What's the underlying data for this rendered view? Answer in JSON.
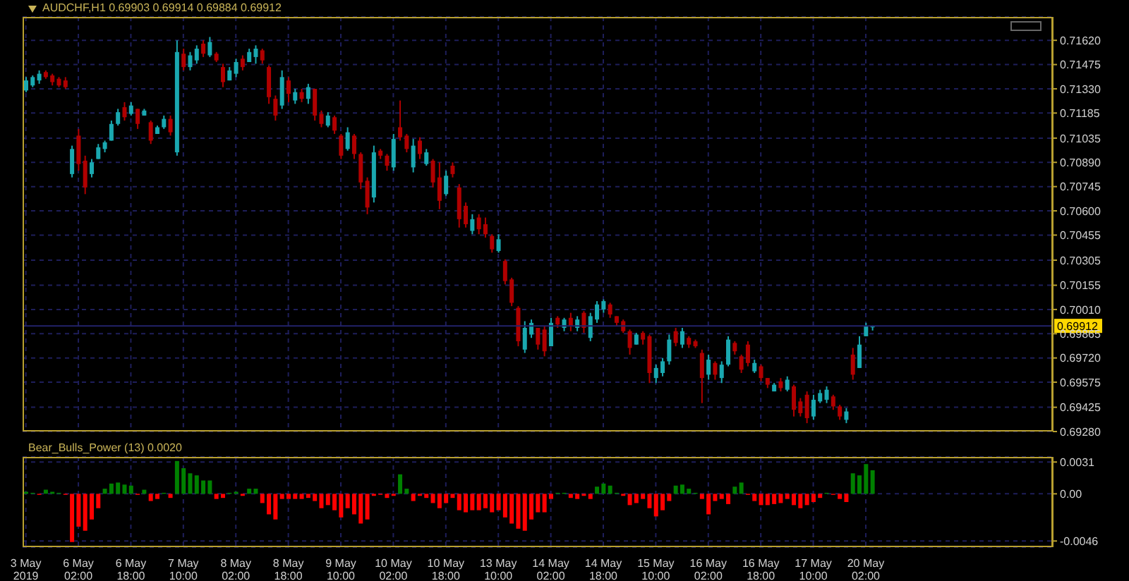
{
  "chart_data": [
    {
      "type": "candlestick",
      "title": "AUDCHF,H1 0.69903 0.69914 0.69884 0.69912",
      "categories": [
        null,
        null,
        null,
        null,
        null,
        null,
        null,
        null,
        null,
        null,
        null,
        null,
        null,
        null,
        null,
        null,
        null,
        null,
        null,
        null,
        null,
        null,
        null,
        null,
        null,
        null,
        null,
        null,
        null,
        null,
        null,
        null,
        null,
        null,
        null,
        null,
        null,
        null,
        null,
        null,
        null,
        null,
        null,
        null,
        null,
        null,
        null,
        null,
        null,
        null,
        null,
        null,
        null,
        null,
        null,
        null,
        null,
        null,
        null,
        null,
        null,
        null,
        null,
        null,
        null,
        null,
        null,
        null,
        null,
        null,
        null,
        null,
        null,
        null,
        null,
        null,
        null,
        null,
        null,
        null,
        null,
        null,
        null,
        null,
        null,
        null,
        null,
        null,
        null,
        null,
        null,
        null,
        null,
        null,
        null,
        null,
        null,
        null,
        null,
        null,
        null,
        null,
        null,
        null,
        null,
        null,
        null,
        null,
        null,
        null,
        null,
        null,
        null,
        null,
        null,
        null,
        null,
        null,
        null,
        null,
        null,
        null,
        null,
        null,
        null,
        null,
        null,
        null,
        null,
        null,
        null,
        null,
        null,
        null,
        null,
        null,
        null,
        null,
        null,
        null,
        null,
        null,
        null,
        null,
        null,
        null,
        null,
        null,
        null,
        null,
        null,
        null,
        null,
        null,
        null,
        null,
        null
      ],
      "ohlc": [
        [
          0.7132,
          0.714,
          0.7131,
          0.7138
        ],
        [
          0.7135,
          0.7141,
          0.7134,
          0.714
        ],
        [
          0.7138,
          0.7144,
          0.7136,
          0.7142
        ],
        [
          0.7143,
          0.7144,
          0.7139,
          0.714
        ],
        [
          0.7141,
          0.7142,
          0.7135,
          0.7137
        ],
        [
          0.7139,
          0.714,
          0.7134,
          0.7135
        ],
        [
          0.7138,
          0.714,
          0.7133,
          0.7134
        ],
        [
          0.7082,
          0.7099,
          0.708,
          0.7097
        ],
        [
          0.7105,
          0.7109,
          0.7084,
          0.7088
        ],
        [
          0.709,
          0.7093,
          0.707,
          0.7074
        ],
        [
          0.7082,
          0.7091,
          0.708,
          0.7089
        ],
        [
          0.7091,
          0.71,
          0.7091,
          0.7098
        ],
        [
          0.7097,
          0.7102,
          0.7095,
          0.7101
        ],
        [
          0.7102,
          0.7114,
          0.7102,
          0.7112
        ],
        [
          0.7112,
          0.7121,
          0.7111,
          0.7119
        ],
        [
          0.7122,
          0.7125,
          0.7114,
          0.7116
        ],
        [
          0.7118,
          0.7125,
          0.7117,
          0.7123
        ],
        [
          0.7121,
          0.7121,
          0.7109,
          0.7112
        ],
        [
          0.7117,
          0.7121,
          0.7117,
          0.712
        ],
        [
          0.7113,
          0.7114,
          0.71,
          0.7102
        ],
        [
          0.7106,
          0.7111,
          0.7106,
          0.711
        ],
        [
          0.711,
          0.7117,
          0.7109,
          0.7115
        ],
        [
          0.7115,
          0.7117,
          0.7105,
          0.7107
        ],
        [
          0.7095,
          0.7162,
          0.7093,
          0.7155
        ],
        [
          0.7154,
          0.7157,
          0.7144,
          0.7146
        ],
        [
          0.7146,
          0.7155,
          0.7144,
          0.7153
        ],
        [
          0.715,
          0.7159,
          0.7148,
          0.7157
        ],
        [
          0.716,
          0.7162,
          0.7152,
          0.7154
        ],
        [
          0.7153,
          0.7164,
          0.7152,
          0.7161
        ],
        [
          0.7154,
          0.7155,
          0.7149,
          0.715
        ],
        [
          0.7146,
          0.7148,
          0.7134,
          0.7137
        ],
        [
          0.7138,
          0.7146,
          0.7138,
          0.7144
        ],
        [
          0.7142,
          0.7151,
          0.714,
          0.7149
        ],
        [
          0.7151,
          0.7153,
          0.7144,
          0.7146
        ],
        [
          0.7149,
          0.7157,
          0.7149,
          0.7155
        ],
        [
          0.7152,
          0.7159,
          0.7148,
          0.7157
        ],
        [
          0.7156,
          0.7157,
          0.7148,
          0.715
        ],
        [
          0.7146,
          0.7147,
          0.7124,
          0.7128
        ],
        [
          0.7127,
          0.7129,
          0.7114,
          0.7117
        ],
        [
          0.7123,
          0.7144,
          0.7121,
          0.714
        ],
        [
          0.7138,
          0.714,
          0.7125,
          0.713
        ],
        [
          0.7126,
          0.7133,
          0.7124,
          0.7131
        ],
        [
          0.7131,
          0.7133,
          0.7125,
          0.7127
        ],
        [
          0.7127,
          0.7136,
          0.7124,
          0.7134
        ],
        [
          0.7133,
          0.7133,
          0.7114,
          0.7117
        ],
        [
          0.7118,
          0.712,
          0.711,
          0.7112
        ],
        [
          0.7111,
          0.7119,
          0.711,
          0.7117
        ],
        [
          0.7116,
          0.7117,
          0.7106,
          0.7108
        ],
        [
          0.7105,
          0.7106,
          0.7091,
          0.7093
        ],
        [
          0.7097,
          0.711,
          0.7096,
          0.7107
        ],
        [
          0.7105,
          0.7106,
          0.7091,
          0.7094
        ],
        [
          0.7094,
          0.7095,
          0.7073,
          0.7077
        ],
        [
          0.7078,
          0.708,
          0.7058,
          0.7062
        ],
        [
          0.7068,
          0.7099,
          0.7065,
          0.7095
        ],
        [
          0.7096,
          0.7097,
          0.7091,
          0.7093
        ],
        [
          0.7093,
          0.7094,
          0.7084,
          0.7087
        ],
        [
          0.7086,
          0.7106,
          0.7084,
          0.7103
        ],
        [
          0.711,
          0.7126,
          0.7102,
          0.7104
        ],
        [
          0.7105,
          0.7106,
          0.7095,
          0.7097
        ],
        [
          0.7086,
          0.7103,
          0.7083,
          0.7099
        ],
        [
          0.7102,
          0.7104,
          0.7091,
          0.7094
        ],
        [
          0.7088,
          0.7097,
          0.7087,
          0.7095
        ],
        [
          0.709,
          0.7091,
          0.7074,
          0.7077
        ],
        [
          0.708,
          0.7089,
          0.7061,
          0.7066
        ],
        [
          0.707,
          0.7084,
          0.7069,
          0.7081
        ],
        [
          0.7087,
          0.7089,
          0.708,
          0.7082
        ],
        [
          0.7074,
          0.7076,
          0.705,
          0.7055
        ],
        [
          0.7063,
          0.7065,
          0.705,
          0.7052
        ],
        [
          0.7048,
          0.7058,
          0.7046,
          0.7055
        ],
        [
          0.7056,
          0.7058,
          0.7046,
          0.7049
        ],
        [
          0.7052,
          0.7056,
          0.7044,
          0.7046
        ],
        [
          0.7045,
          0.7046,
          0.7035,
          0.7037
        ],
        [
          0.7036,
          0.7046,
          0.7035,
          0.7043
        ],
        [
          0.703,
          0.7031,
          0.7016,
          0.7018
        ],
        [
          0.7019,
          0.702,
          0.7003,
          0.7005
        ],
        [
          0.7002,
          0.7003,
          0.6979,
          0.6982
        ],
        [
          0.6977,
          0.6994,
          0.6975,
          0.699
        ],
        [
          0.6986,
          0.6995,
          0.6984,
          0.6993
        ],
        [
          0.699,
          0.699,
          0.6977,
          0.698
        ],
        [
          0.6989,
          0.6991,
          0.6973,
          0.6976
        ],
        [
          0.6979,
          0.6996,
          0.6979,
          0.6993
        ],
        [
          0.6996,
          0.6997,
          0.699,
          0.6992
        ],
        [
          0.699,
          0.6996,
          0.6988,
          0.6995
        ],
        [
          0.6996,
          0.6999,
          0.6988,
          0.6991
        ],
        [
          0.699,
          0.6997,
          0.6988,
          0.6995
        ],
        [
          0.6999,
          0.7,
          0.6987,
          0.699
        ],
        [
          0.6984,
          0.6999,
          0.6982,
          0.6997
        ],
        [
          0.6995,
          0.7006,
          0.6993,
          0.7004
        ],
        [
          0.7001,
          0.7007,
          0.6999,
          0.7006
        ],
        [
          0.7004,
          0.7005,
          0.6996,
          0.6998
        ],
        [
          0.6997,
          0.6997,
          0.6991,
          0.6993
        ],
        [
          0.6994,
          0.6995,
          0.6987,
          0.6988
        ],
        [
          0.6988,
          0.6989,
          0.6974,
          0.6978
        ],
        [
          0.698,
          0.6987,
          0.698,
          0.6986
        ],
        [
          0.6987,
          0.6988,
          0.698,
          0.6983
        ],
        [
          0.6985,
          0.6986,
          0.6957,
          0.6963
        ],
        [
          0.696,
          0.6968,
          0.6957,
          0.6966
        ],
        [
          0.6963,
          0.6972,
          0.6961,
          0.697
        ],
        [
          0.697,
          0.6986,
          0.6968,
          0.6983
        ],
        [
          0.6988,
          0.699,
          0.6979,
          0.6981
        ],
        [
          0.698,
          0.699,
          0.6978,
          0.6988
        ],
        [
          0.6984,
          0.6985,
          0.6978,
          0.698
        ],
        [
          0.6982,
          0.6983,
          0.6978,
          0.6979
        ],
        [
          0.6975,
          0.6977,
          0.6945,
          0.696
        ],
        [
          0.6962,
          0.6974,
          0.6959,
          0.6971
        ],
        [
          0.6969,
          0.697,
          0.6959,
          0.6962
        ],
        [
          0.696,
          0.697,
          0.6957,
          0.6968
        ],
        [
          0.6968,
          0.6985,
          0.6967,
          0.6983
        ],
        [
          0.6981,
          0.6982,
          0.6974,
          0.6976
        ],
        [
          0.6973,
          0.6974,
          0.6963,
          0.6965
        ],
        [
          0.698,
          0.6982,
          0.6967,
          0.6969
        ],
        [
          0.6964,
          0.6971,
          0.6963,
          0.6969
        ],
        [
          0.6967,
          0.6968,
          0.6958,
          0.696
        ],
        [
          0.696,
          0.696,
          0.6954,
          0.6956
        ],
        [
          0.6952,
          0.6957,
          0.6952,
          0.6956
        ],
        [
          0.6958,
          0.696,
          0.6952,
          0.6954
        ],
        [
          0.6953,
          0.6961,
          0.6952,
          0.6959
        ],
        [
          0.6955,
          0.6956,
          0.6937,
          0.6941
        ],
        [
          0.6946,
          0.6948,
          0.6937,
          0.6939
        ],
        [
          0.695,
          0.6952,
          0.6933,
          0.6936
        ],
        [
          0.6937,
          0.695,
          0.6935,
          0.6947
        ],
        [
          0.6946,
          0.6953,
          0.6945,
          0.6951
        ],
        [
          0.6947,
          0.6955,
          0.6945,
          0.6953
        ],
        [
          0.6949,
          0.695,
          0.6941,
          0.6943
        ],
        [
          0.6943,
          0.6944,
          0.6935,
          0.6937
        ],
        [
          0.6935,
          0.6942,
          0.6933,
          0.694
        ],
        [
          0.6974,
          0.6978,
          0.6959,
          0.6962
        ],
        [
          0.6966,
          0.6985,
          0.6966,
          0.698
        ],
        [
          0.6985,
          0.6993,
          0.6985,
          0.6991
        ],
        [
          0.69903,
          0.69914,
          0.69884,
          0.69912
        ],
        null,
        null,
        null,
        null,
        null,
        null,
        null,
        null,
        null,
        null,
        null,
        null,
        null,
        null,
        null,
        null,
        null,
        null,
        null,
        null,
        null,
        null,
        null,
        null,
        null,
        null,
        null
      ],
      "colors": [
        "#1aa8b0",
        "#1aa8b0",
        "#1aa8b0",
        "#b00000",
        "#b00000",
        "#b00000",
        "#b00000",
        "#1aa8b0",
        "#b00000",
        "#b00000",
        "#1aa8b0",
        "#1aa8b0",
        "#1aa8b0",
        "#1aa8b0",
        "#1aa8b0",
        "#b00000",
        "#1aa8b0",
        "#b00000",
        "#1aa8b0",
        "#b00000",
        "#1aa8b0",
        "#1aa8b0",
        "#b00000",
        "#1aa8b0",
        "#b00000",
        "#1aa8b0",
        "#1aa8b0",
        "#b00000",
        "#1aa8b0",
        "#b00000",
        "#b00000",
        "#1aa8b0",
        "#1aa8b0",
        "#b00000",
        "#1aa8b0",
        "#1aa8b0",
        "#b00000",
        "#b00000",
        "#b00000",
        "#1aa8b0",
        "#b00000",
        "#1aa8b0",
        "#b00000",
        "#1aa8b0",
        "#b00000",
        "#b00000",
        "#1aa8b0",
        "#b00000",
        "#b00000",
        "#1aa8b0",
        "#b00000",
        "#b00000",
        "#b00000",
        "#1aa8b0",
        "#b00000",
        "#b00000",
        "#1aa8b0",
        "#b00000",
        "#b00000",
        "#1aa8b0",
        "#b00000",
        "#1aa8b0",
        "#b00000",
        "#b00000",
        "#1aa8b0",
        "#b00000",
        "#b00000",
        "#b00000",
        "#1aa8b0",
        "#b00000",
        "#b00000",
        "#b00000",
        "#1aa8b0",
        "#b00000",
        "#b00000",
        "#b00000",
        "#1aa8b0",
        "#1aa8b0",
        "#b00000",
        "#b00000",
        "#1aa8b0",
        "#b00000",
        "#1aa8b0",
        "#b00000",
        "#1aa8b0",
        "#b00000",
        "#1aa8b0",
        "#1aa8b0",
        "#1aa8b0",
        "#b00000",
        "#b00000",
        "#b00000",
        "#b00000",
        "#1aa8b0",
        "#b00000",
        "#b00000",
        "#1aa8b0",
        "#1aa8b0",
        "#1aa8b0",
        "#b00000",
        "#1aa8b0",
        "#b00000",
        "#b00000",
        "#b00000",
        "#1aa8b0",
        "#b00000",
        "#1aa8b0",
        "#1aa8b0",
        "#b00000",
        "#b00000",
        "#b00000",
        "#1aa8b0",
        "#b00000",
        "#b00000",
        "#1aa8b0",
        "#b00000",
        "#1aa8b0",
        "#b00000",
        "#b00000",
        "#b00000",
        "#1aa8b0",
        "#1aa8b0",
        "#1aa8b0",
        "#b00000",
        "#b00000",
        "#1aa8b0",
        "#b00000",
        "#1aa8b0",
        "#1aa8b0",
        "#1aa8b0",
        null,
        null,
        null,
        null,
        null,
        null,
        null,
        null,
        null,
        null,
        null,
        null,
        null,
        null,
        null,
        null,
        null,
        null,
        null,
        null,
        null,
        null,
        null,
        null,
        null,
        null,
        null
      ],
      "ylim": [
        0.6928,
        0.7176
      ],
      "yticks": [
        {
          "value": 0.6928,
          "label": "0.69280"
        },
        {
          "value": 0.69425,
          "label": "0.69425"
        },
        {
          "value": 0.69575,
          "label": "0.69575"
        },
        {
          "value": 0.6972,
          "label": "0.69720"
        },
        {
          "value": 0.69865,
          "label": "0.69865"
        },
        {
          "value": 0.7001,
          "label": "0.70010"
        },
        {
          "value": 0.70155,
          "label": "0.70155"
        },
        {
          "value": 0.70305,
          "label": "0.70305"
        },
        {
          "value": 0.70455,
          "label": "0.70455"
        },
        {
          "value": 0.706,
          "label": "0.70600"
        },
        {
          "value": 0.70745,
          "label": "0.70745"
        },
        {
          "value": 0.7089,
          "label": "0.70890"
        },
        {
          "value": 0.71035,
          "label": "0.71035"
        },
        {
          "value": 0.71185,
          "label": "0.71185"
        },
        {
          "value": 0.7133,
          "label": "0.71330"
        },
        {
          "value": 0.71475,
          "label": "0.71475"
        },
        {
          "value": 0.7162,
          "label": "0.71620"
        }
      ],
      "ref_lines": [
        {
          "axis": "y",
          "value": 0.69912,
          "label": "0.69912",
          "color": "#22226a"
        }
      ],
      "grid": true,
      "tick_labels": "y"
    },
    {
      "type": "bar",
      "title": "Bear_Bulls_Power (13) 0.0020",
      "categories": [
        "3 May 2019",
        null,
        null,
        null,
        null,
        null,
        null,
        null,
        "6 May 02:00",
        null,
        null,
        null,
        null,
        null,
        null,
        null,
        "6 May 18:00",
        null,
        null,
        null,
        null,
        null,
        null,
        null,
        "7 May 10:00",
        null,
        null,
        null,
        null,
        null,
        null,
        null,
        "8 May 02:00",
        null,
        null,
        null,
        null,
        null,
        null,
        null,
        "8 May 18:00",
        null,
        null,
        null,
        null,
        null,
        null,
        null,
        "9 May 10:00",
        null,
        null,
        null,
        null,
        null,
        null,
        null,
        "10 May 02:00",
        null,
        null,
        null,
        null,
        null,
        null,
        null,
        "10 May 18:00",
        null,
        null,
        null,
        null,
        null,
        null,
        null,
        "13 May 10:00",
        null,
        null,
        null,
        null,
        null,
        null,
        null,
        "14 May 02:00",
        null,
        null,
        null,
        null,
        null,
        null,
        null,
        "14 May 18:00",
        null,
        null,
        null,
        null,
        null,
        null,
        null,
        "15 May 10:00",
        null,
        null,
        null,
        null,
        null,
        null,
        null,
        "16 May 02:00",
        null,
        null,
        null,
        null,
        null,
        null,
        null,
        "16 May 18:00",
        null,
        null,
        null,
        null,
        null,
        null,
        null,
        "17 May 10:00",
        null,
        null,
        null,
        null,
        null,
        null,
        null,
        "20 May 02:00",
        null,
        null,
        null,
        null,
        null,
        null,
        null,
        null,
        null,
        null,
        null,
        null,
        null,
        null,
        null,
        null,
        null,
        null,
        null,
        null,
        null,
        null,
        null,
        null,
        null,
        null,
        null,
        null
      ],
      "values": [
        0.0002,
        0.0001,
        -0.0001,
        0.0004,
        0.0002,
        0.0001,
        -0.0001,
        -0.0047,
        -0.0032,
        -0.0036,
        -0.0025,
        -0.0014,
        0.0005,
        0.001,
        0.0011,
        0.0009,
        0.0008,
        -0.0001,
        0.0004,
        -0.0007,
        -0.0005,
        0.0001,
        -0.0004,
        0.0032,
        0.0025,
        0.002,
        0.0018,
        0.0013,
        0.0013,
        -0.0005,
        -0.0004,
        0.0001,
        0.0002,
        -0.0002,
        0.0005,
        0.0005,
        -0.0009,
        -0.002,
        -0.0025,
        -0.0005,
        -0.0005,
        -0.0005,
        -0.0005,
        -0.0004,
        -0.0007,
        -0.0014,
        -0.0011,
        -0.0016,
        -0.0023,
        -0.0014,
        -0.002,
        -0.0029,
        -0.0025,
        -0.0002,
        -0.0001,
        -0.0004,
        -0.0002,
        0.0019,
        0.0005,
        -0.0007,
        -0.0002,
        -0.0004,
        -0.0009,
        -0.0014,
        -0.0009,
        -0.0004,
        -0.0016,
        -0.0018,
        -0.0016,
        -0.0016,
        -0.0014,
        -0.0018,
        -0.0016,
        -0.0023,
        -0.0029,
        -0.0034,
        -0.0036,
        -0.0025,
        -0.0018,
        -0.0018,
        -0.0005,
        0.0001,
        0.0001,
        -0.0004,
        -0.0005,
        -0.0002,
        -0.0005,
        0.0007,
        0.001,
        0.0008,
        0.0001,
        -0.0002,
        -0.0011,
        -0.0009,
        -0.0005,
        -0.0014,
        -0.0022,
        -0.0016,
        -0.0007,
        0.0008,
        0.0009,
        0.0005,
        0.0001,
        -0.0005,
        -0.002,
        -0.0007,
        -0.0005,
        -0.001,
        0.0007,
        0.0011,
        -0.0001,
        -0.0007,
        -0.0011,
        -0.0011,
        -0.001,
        -0.0009,
        -0.0005,
        -0.0011,
        -0.0014,
        -0.0011,
        -0.0008,
        -0.0004,
        0.0001,
        -0.0001,
        -0.0005,
        -0.0008,
        0.002,
        0.0018,
        0.0029,
        0.0023,
        null,
        null,
        null,
        null,
        null,
        null,
        null,
        null,
        null,
        null,
        null,
        null,
        null,
        null,
        null,
        null,
        null,
        null,
        null,
        null,
        null,
        null,
        null,
        null,
        null,
        null,
        null
      ],
      "colors": [
        "#008000",
        "#008000",
        "#ff0000",
        "#008000",
        "#008000",
        "#008000",
        "#ff0000",
        "#ff0000",
        "#ff0000",
        "#ff0000",
        "#ff0000",
        "#ff0000",
        "#008000",
        "#008000",
        "#008000",
        "#008000",
        "#008000",
        "#ff0000",
        "#008000",
        "#ff0000",
        "#ff0000",
        "#008000",
        "#ff0000",
        "#008000",
        "#008000",
        "#008000",
        "#008000",
        "#008000",
        "#008000",
        "#ff0000",
        "#ff0000",
        "#008000",
        "#008000",
        "#ff0000",
        "#008000",
        "#008000",
        "#ff0000",
        "#ff0000",
        "#ff0000",
        "#ff0000",
        "#ff0000",
        "#ff0000",
        "#ff0000",
        "#ff0000",
        "#ff0000",
        "#ff0000",
        "#ff0000",
        "#ff0000",
        "#ff0000",
        "#ff0000",
        "#ff0000",
        "#ff0000",
        "#ff0000",
        "#ff0000",
        "#ff0000",
        "#ff0000",
        "#ff0000",
        "#008000",
        "#008000",
        "#ff0000",
        "#ff0000",
        "#ff0000",
        "#ff0000",
        "#ff0000",
        "#ff0000",
        "#ff0000",
        "#ff0000",
        "#ff0000",
        "#ff0000",
        "#ff0000",
        "#ff0000",
        "#ff0000",
        "#ff0000",
        "#ff0000",
        "#ff0000",
        "#ff0000",
        "#ff0000",
        "#ff0000",
        "#ff0000",
        "#ff0000",
        "#ff0000",
        "#008000",
        "#008000",
        "#ff0000",
        "#ff0000",
        "#ff0000",
        "#ff0000",
        "#008000",
        "#008000",
        "#008000",
        "#008000",
        "#ff0000",
        "#ff0000",
        "#ff0000",
        "#ff0000",
        "#ff0000",
        "#ff0000",
        "#ff0000",
        "#ff0000",
        "#008000",
        "#008000",
        "#008000",
        "#008000",
        "#ff0000",
        "#ff0000",
        "#ff0000",
        "#ff0000",
        "#ff0000",
        "#008000",
        "#008000",
        "#ff0000",
        "#ff0000",
        "#ff0000",
        "#ff0000",
        "#ff0000",
        "#ff0000",
        "#ff0000",
        "#ff0000",
        "#ff0000",
        "#ff0000",
        "#ff0000",
        "#ff0000",
        "#008000",
        "#ff0000",
        "#ff0000",
        "#ff0000",
        "#008000",
        "#008000",
        "#008000",
        "#008000",
        null,
        null,
        null,
        null,
        null,
        null,
        null,
        null,
        null,
        null,
        null,
        null,
        null,
        null,
        null,
        null,
        null,
        null,
        null,
        null,
        null,
        null,
        null,
        null,
        null,
        null,
        null
      ],
      "ylim": [
        -0.0052,
        0.0036
      ],
      "yticks": [
        -0.0046,
        {
          "value": 0,
          "label": "0.00"
        },
        0.0031
      ],
      "grid": true
    }
  ]
}
